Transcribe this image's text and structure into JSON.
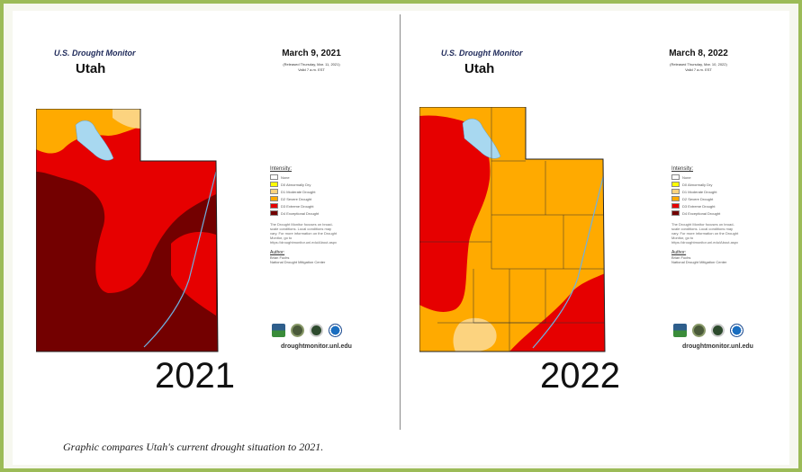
{
  "left": {
    "monitor_title": "U.S. Drought Monitor",
    "state": "Utah",
    "date": "March 9, 2021",
    "released": "(Released Thursday, Mar. 11, 2021)",
    "valid": "Valid 7 a.m. EST",
    "year_label": "2021"
  },
  "right": {
    "monitor_title": "U.S. Drought Monitor",
    "state": "Utah",
    "date": "March 8, 2022",
    "released": "(Released Thursday, Mar. 10, 2022)",
    "valid": "Valid 7 a.m. EST",
    "year_label": "2022"
  },
  "legend": {
    "title": "Intensity:",
    "items": [
      {
        "label": "None",
        "color": "#ffffff"
      },
      {
        "label": "D0 Abnormally Dry",
        "color": "#ffff00"
      },
      {
        "label": "D1 Moderate Drought",
        "color": "#fcd37f"
      },
      {
        "label": "D2 Severe Drought",
        "color": "#ffaa00"
      },
      {
        "label": "D3 Extreme Drought",
        "color": "#e60000"
      },
      {
        "label": "D4 Exceptional Drought",
        "color": "#730000"
      }
    ],
    "note": "The Drought Monitor focuses on broad-scale conditions. Local conditions may vary. For more information on the Drought Monitor, go to https://droughtmonitor.unl.edu/About.aspx",
    "author_title": "Author:",
    "author_name": "Brian Fuchs",
    "author_org": "National Drought Mitigation Center"
  },
  "site": "droughtmonitor.unl.edu",
  "logos": [
    "usda-logo-icon",
    "ndmc-logo-icon",
    "doc-logo-icon",
    "noaa-logo-icon"
  ],
  "caption": "Graphic compares Utah's current drought situation to 2021."
}
